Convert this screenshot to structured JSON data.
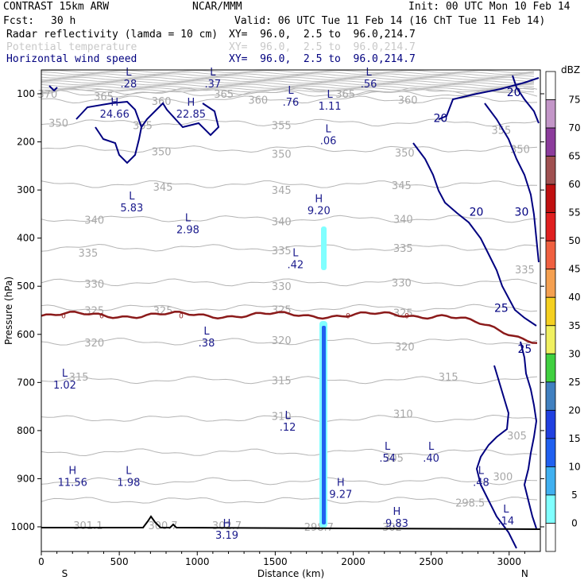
{
  "header": {
    "model": "CONTRAST 15km ARW",
    "org": "NCAR/MMM",
    "init": "Init: 00 UTC Mon 10 Feb 14",
    "fcst_label": "Fcst:",
    "fcst_value": "30 h",
    "valid": "Valid: 06 UTC Tue 11 Feb 14 (16 ChT Tue 11 Feb 14)",
    "fields": [
      {
        "name": "Radar reflectivity (lamda = 10 cm)",
        "xy": "XY=  96.0,  2.5 to  96.0,214.7",
        "color": "#000000"
      },
      {
        "name": "Potential temperature",
        "xy": "XY=  96.0,  2.5 to  96.0,214.7",
        "color": "#c8c8c8"
      },
      {
        "name": "Horizontal wind speed",
        "xy": "XY=  96.0,  2.5 to  96.0,214.7",
        "color": "#00007f"
      }
    ]
  },
  "chart_data": {
    "type": "contour-cross-section",
    "xlabel": "Distance (km)",
    "ylabel": "Pressure (hPa)",
    "xlim": [
      0,
      3200
    ],
    "ylim": [
      1050,
      60
    ],
    "x_ticks": [
      0,
      500,
      1000,
      1500,
      2000,
      2500,
      3000
    ],
    "y_ticks": [
      100,
      200,
      300,
      400,
      500,
      600,
      700,
      800,
      900,
      1000
    ],
    "end_labels": {
      "left": "S",
      "right": "N"
    },
    "theta_contours": [
      {
        "label": "370",
        "p": 95
      },
      {
        "label": "365",
        "p": 100
      },
      {
        "label": "360",
        "p": 112
      },
      {
        "label": "355",
        "p": 160
      },
      {
        "label": "350",
        "p": 215
      },
      {
        "label": "345",
        "p": 288
      },
      {
        "label": "340",
        "p": 360
      },
      {
        "label": "335",
        "p": 420
      },
      {
        "label": "330",
        "p": 492
      },
      {
        "label": "325",
        "p": 545
      },
      {
        "label": "320",
        "p": 615
      },
      {
        "label": "315",
        "p": 695
      },
      {
        "label": "310",
        "p": 775
      },
      {
        "label": "305",
        "p": 845
      },
      {
        "label": "300",
        "p": 905
      },
      {
        "label": "298.5",
        "p": 945
      }
    ],
    "theta_labels": [
      {
        "t": "370",
        "x": 40,
        "p": 100
      },
      {
        "t": "365",
        "x": 400,
        "p": 105
      },
      {
        "t": "360",
        "x": 770,
        "p": 115
      },
      {
        "t": "365",
        "x": 1170,
        "p": 100
      },
      {
        "t": "360",
        "x": 1390,
        "p": 112
      },
      {
        "t": "365",
        "x": 1950,
        "p": 100
      },
      {
        "t": "360",
        "x": 2350,
        "p": 112
      },
      {
        "t": "350",
        "x": 110,
        "p": 160
      },
      {
        "t": "355",
        "x": 650,
        "p": 165
      },
      {
        "t": "355",
        "x": 1540,
        "p": 165
      },
      {
        "t": "355",
        "x": 2950,
        "p": 175
      },
      {
        "t": "350",
        "x": 770,
        "p": 220
      },
      {
        "t": "350",
        "x": 1540,
        "p": 225
      },
      {
        "t": "350",
        "x": 2330,
        "p": 222
      },
      {
        "t": "350",
        "x": 3070,
        "p": 215
      },
      {
        "t": "345",
        "x": 780,
        "p": 293
      },
      {
        "t": "345",
        "x": 1540,
        "p": 300
      },
      {
        "t": "345",
        "x": 2310,
        "p": 290
      },
      {
        "t": "340",
        "x": 340,
        "p": 362
      },
      {
        "t": "340",
        "x": 1540,
        "p": 365
      },
      {
        "t": "340",
        "x": 2320,
        "p": 360
      },
      {
        "t": "335",
        "x": 300,
        "p": 430
      },
      {
        "t": "335",
        "x": 1540,
        "p": 425
      },
      {
        "t": "335",
        "x": 2320,
        "p": 420
      },
      {
        "t": "330",
        "x": 340,
        "p": 495
      },
      {
        "t": "330",
        "x": 1540,
        "p": 500
      },
      {
        "t": "330",
        "x": 2310,
        "p": 492
      },
      {
        "t": "335",
        "x": 3100,
        "p": 465
      },
      {
        "t": "325",
        "x": 340,
        "p": 550
      },
      {
        "t": "325",
        "x": 780,
        "p": 550
      },
      {
        "t": "325",
        "x": 1540,
        "p": 548
      },
      {
        "t": "325",
        "x": 2320,
        "p": 555
      },
      {
        "t": "320",
        "x": 340,
        "p": 617
      },
      {
        "t": "320",
        "x": 1540,
        "p": 612
      },
      {
        "t": "320",
        "x": 2330,
        "p": 625
      },
      {
        "t": "315",
        "x": 240,
        "p": 688
      },
      {
        "t": "315",
        "x": 1540,
        "p": 695
      },
      {
        "t": "315",
        "x": 2610,
        "p": 688
      },
      {
        "t": "310",
        "x": 1540,
        "p": 770
      },
      {
        "t": "310",
        "x": 2320,
        "p": 765
      },
      {
        "t": "305",
        "x": 2260,
        "p": 856
      },
      {
        "t": "305",
        "x": 3050,
        "p": 810
      },
      {
        "t": "300",
        "x": 2960,
        "p": 895
      },
      {
        "t": "301.1",
        "x": 300,
        "p": 997
      },
      {
        "t": "300.7",
        "x": 780,
        "p": 997
      },
      {
        "t": "302.7",
        "x": 1190,
        "p": 997
      },
      {
        "t": "298.7",
        "x": 1780,
        "p": 1000
      },
      {
        "t": "302",
        "x": 2250,
        "p": 1000
      },
      {
        "t": "298.5",
        "x": 2750,
        "p": 950
      }
    ],
    "hl_labels": [
      {
        "hl": "L",
        "v": ".28",
        "x": 560,
        "p": 62
      },
      {
        "hl": "L",
        "v": ".37",
        "x": 1100,
        "p": 62
      },
      {
        "hl": "L",
        "v": ".56",
        "x": 2100,
        "p": 62
      },
      {
        "hl": "H",
        "v": "24.66",
        "x": 470,
        "p": 125
      },
      {
        "hl": "H",
        "v": "22.85",
        "x": 960,
        "p": 125
      },
      {
        "hl": "L",
        "v": ".76",
        "x": 1600,
        "p": 100
      },
      {
        "hl": "L",
        "v": "1.11",
        "x": 1850,
        "p": 108
      },
      {
        "hl": "L",
        "v": ".06",
        "x": 1840,
        "p": 180
      },
      {
        "hl": "L",
        "v": "5.83",
        "x": 580,
        "p": 320
      },
      {
        "hl": "L",
        "v": "2.98",
        "x": 940,
        "p": 365
      },
      {
        "hl": "H",
        "v": "9.20",
        "x": 1780,
        "p": 325
      },
      {
        "hl": "L",
        "v": ".42",
        "x": 1630,
        "p": 438
      },
      {
        "hl": "L",
        "v": ".38",
        "x": 1060,
        "p": 600
      },
      {
        "hl": "L",
        "v": "1.02",
        "x": 150,
        "p": 688
      },
      {
        "hl": "L",
        "v": ".12",
        "x": 1580,
        "p": 775
      },
      {
        "hl": "L",
        "v": ".54",
        "x": 2220,
        "p": 840
      },
      {
        "hl": "L",
        "v": ".40",
        "x": 2500,
        "p": 840
      },
      {
        "hl": "H",
        "v": "11.56",
        "x": 200,
        "p": 890
      },
      {
        "hl": "L",
        "v": "1.98",
        "x": 560,
        "p": 890
      },
      {
        "hl": "H",
        "v": "9.27",
        "x": 1920,
        "p": 915
      },
      {
        "hl": "L",
        "v": ".48",
        "x": 2820,
        "p": 890
      },
      {
        "hl": "L",
        "v": ".14",
        "x": 2980,
        "p": 970
      },
      {
        "hl": "H",
        "v": "3.19",
        "x": 1190,
        "p": 1000
      },
      {
        "hl": "H",
        "v": "9.83",
        "x": 2280,
        "p": 975
      }
    ],
    "wind_contour_labels": [
      {
        "t": "20",
        "x": 3030,
        "p": 97
      },
      {
        "t": "20",
        "x": 2560,
        "p": 150
      },
      {
        "t": "20",
        "x": 2790,
        "p": 345
      },
      {
        "t": "30",
        "x": 3080,
        "p": 345
      },
      {
        "t": "25",
        "x": 2950,
        "p": 545
      },
      {
        "t": "25",
        "x": 3100,
        "p": 630
      }
    ],
    "freezing_level": {
      "label": "0",
      "p": 560
    },
    "reflectivity_scale": {
      "unit": "dBZ",
      "levels": [
        75,
        70,
        65,
        60,
        55,
        50,
        45,
        40,
        35,
        30,
        25,
        20,
        15,
        10,
        5,
        0
      ],
      "colors": [
        "#ffffff",
        "#c396c8",
        "#8c3c9c",
        "#a05050",
        "#c01010",
        "#e02020",
        "#f06040",
        "#f5a050",
        "#f5d020",
        "#f0f060",
        "#40d040",
        "#4080c0",
        "#2040e0",
        "#2060f0",
        "#40b0f0",
        "#80ffff",
        "#ffffff"
      ]
    }
  }
}
